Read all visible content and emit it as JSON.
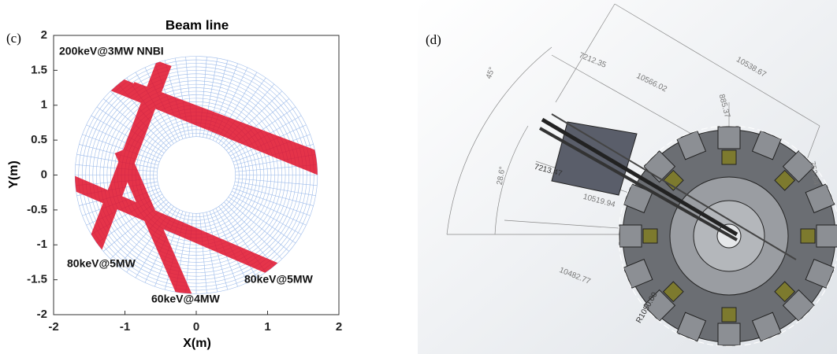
{
  "panel_c": {
    "label": "(c)",
    "title": "Beam line",
    "x_label": "X(m)",
    "y_label": "Y(m)",
    "xlim": [
      -2,
      2
    ],
    "ylim": [
      -2,
      2
    ],
    "xticks": [
      -2,
      -1,
      0,
      1,
      2
    ],
    "yticks": [
      -2,
      -1.5,
      -1,
      -0.5,
      0,
      0.5,
      1,
      1.5,
      2
    ],
    "annotations": [
      "200keV@3MW NNBI",
      "80keV@5MW",
      "80keV@5MW",
      "60keV@4MW"
    ]
  },
  "panel_d": {
    "label": "(d)",
    "dimensions": [
      "10538.67",
      "7212.35",
      "10566.02",
      "885.37",
      "45°",
      "28.6°",
      "7213.47",
      "10519.94",
      "10482.77",
      "R1050.00",
      "753.64"
    ]
  }
}
